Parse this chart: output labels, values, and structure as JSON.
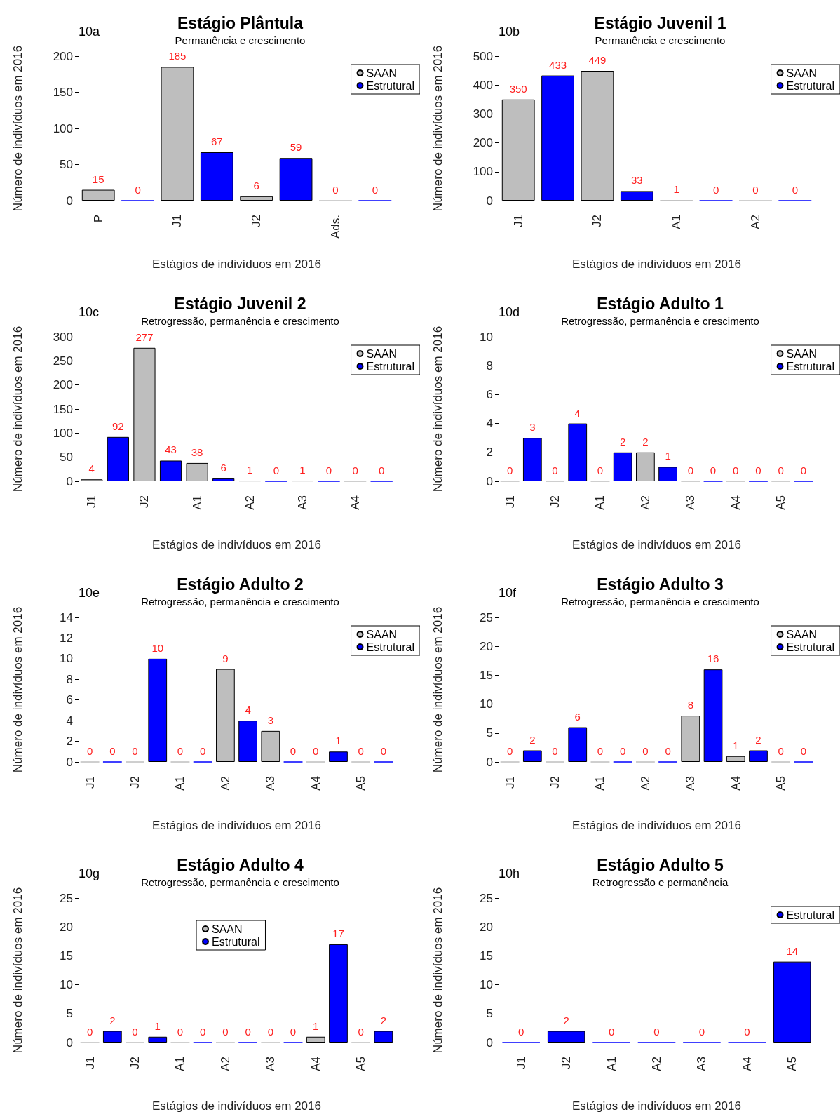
{
  "chart_data": [
    {
      "type": "bar",
      "title": "Estágio Plântula",
      "subtitle": "Permanência e crescimento",
      "xlabel": "Estágios de indivíduos em 2016",
      "ylabel": "Número de indivíduos em 2016",
      "annotations": [
        "10a"
      ],
      "categories": [
        "P",
        null,
        "J1",
        null,
        "J2",
        null,
        "Ads.",
        null
      ],
      "stacked": true,
      "ylim": [
        0,
        200
      ],
      "yticks": [
        0,
        50,
        100,
        150,
        200
      ],
      "data_labels": true,
      "legend": "top right",
      "series": [
        {
          "name": "SAAN",
          "color": "#bebebe",
          "values": [
            15,
            null,
            185,
            null,
            6,
            null,
            0,
            null
          ]
        },
        {
          "name": "Estrutural",
          "color": "#0000ff",
          "values": [
            null,
            0,
            null,
            67,
            null,
            59,
            null,
            0
          ]
        }
      ]
    },
    {
      "type": "bar",
      "title": "Estágio Juvenil 1",
      "subtitle": "Permanência e crescimento",
      "xlabel": "Estágios de indivíduos em 2016",
      "ylabel": "Número de indivíduos em 2016",
      "annotations": [
        "10b"
      ],
      "categories": [
        "J1",
        null,
        "J2",
        null,
        "A1",
        null,
        "A2",
        null
      ],
      "stacked": true,
      "ylim": [
        0,
        500
      ],
      "yticks": [
        0,
        100,
        200,
        300,
        400,
        500
      ],
      "data_labels": true,
      "legend": "top right",
      "series": [
        {
          "name": "SAAN",
          "color": "#bebebe",
          "values": [
            350,
            null,
            449,
            null,
            1,
            null,
            0,
            null
          ]
        },
        {
          "name": "Estrutural",
          "color": "#0000ff",
          "values": [
            null,
            433,
            null,
            33,
            null,
            0,
            null,
            0
          ]
        }
      ]
    },
    {
      "type": "bar",
      "title": "Estágio Juvenil 2",
      "subtitle": "Retrogressão, permanência e crescimento",
      "xlabel": "Estágios de indivíduos em 2016",
      "ylabel": "Número de indivíduos em 2016",
      "annotations": [
        "10c"
      ],
      "categories": [
        "J1",
        null,
        "J2",
        null,
        "A1",
        null,
        "A2",
        null,
        "A3",
        null,
        "A4",
        null
      ],
      "stacked": true,
      "ylim": [
        0,
        300
      ],
      "yticks": [
        0,
        50,
        100,
        150,
        200,
        250,
        300
      ],
      "data_labels": true,
      "legend": "top right",
      "series": [
        {
          "name": "SAAN",
          "color": "#bebebe",
          "values": [
            4,
            null,
            277,
            null,
            38,
            null,
            1,
            null,
            1,
            null,
            0,
            null
          ]
        },
        {
          "name": "Estrutural",
          "color": "#0000ff",
          "values": [
            null,
            92,
            null,
            43,
            null,
            6,
            null,
            0,
            null,
            0,
            null,
            0
          ]
        }
      ]
    },
    {
      "type": "bar",
      "title": "Estágio Adulto 1",
      "subtitle": "Retrogressão, permanência e crescimento",
      "xlabel": "Estágios de indivíduos em 2016",
      "ylabel": "Número de indivíduos em 2016",
      "annotations": [
        "10d"
      ],
      "categories": [
        "J1",
        null,
        "J2",
        null,
        "A1",
        null,
        "A2",
        null,
        "A3",
        null,
        "A4",
        null,
        "A5",
        null
      ],
      "stacked": true,
      "ylim": [
        0,
        10
      ],
      "yticks": [
        0,
        2,
        4,
        6,
        8,
        10
      ],
      "data_labels": true,
      "legend": "top right",
      "series": [
        {
          "name": "SAAN",
          "color": "#bebebe",
          "values": [
            0,
            null,
            0,
            null,
            0,
            null,
            2,
            null,
            0,
            null,
            0,
            null,
            0,
            null
          ]
        },
        {
          "name": "Estrutural",
          "color": "#0000ff",
          "values": [
            null,
            3,
            null,
            4,
            null,
            2,
            null,
            1,
            null,
            0,
            null,
            0,
            null,
            0
          ]
        }
      ]
    },
    {
      "type": "bar",
      "title": "Estágio Adulto 2",
      "subtitle": "Retrogressão, permanência e crescimento",
      "xlabel": "Estágios de indivíduos em 2016",
      "ylabel": "Número de indivíduos em 2016",
      "annotations": [
        "10e"
      ],
      "categories": [
        "J1",
        null,
        "J2",
        null,
        "A1",
        null,
        "A2",
        null,
        "A3",
        null,
        "A4",
        null,
        "A5",
        null
      ],
      "stacked": true,
      "ylim": [
        0,
        14
      ],
      "yticks": [
        0,
        2,
        4,
        6,
        8,
        10,
        12,
        14
      ],
      "data_labels": true,
      "legend": "top right",
      "series": [
        {
          "name": "SAAN",
          "color": "#bebebe",
          "values": [
            0,
            null,
            0,
            null,
            0,
            null,
            9,
            null,
            3,
            null,
            0,
            null,
            0,
            null
          ]
        },
        {
          "name": "Estrutural",
          "color": "#0000ff",
          "values": [
            null,
            0,
            null,
            10,
            null,
            0,
            null,
            4,
            null,
            0,
            null,
            1,
            null,
            0
          ]
        }
      ]
    },
    {
      "type": "bar",
      "title": "Estágio Adulto 3",
      "subtitle": "Retrogressão, permanência e crescimento",
      "xlabel": "Estágios de indivíduos em 2016",
      "ylabel": "Número de indivíduos em 2016",
      "annotations": [
        "10f"
      ],
      "categories": [
        "J1",
        null,
        "J2",
        null,
        "A1",
        null,
        "A2",
        null,
        "A3",
        null,
        "A4",
        null,
        "A5",
        null
      ],
      "stacked": true,
      "ylim": [
        0,
        25
      ],
      "yticks": [
        0,
        5,
        10,
        15,
        20,
        25
      ],
      "data_labels": true,
      "legend": "top right",
      "series": [
        {
          "name": "SAAN",
          "color": "#bebebe",
          "values": [
            0,
            null,
            0,
            null,
            0,
            null,
            0,
            null,
            8,
            null,
            1,
            null,
            0,
            null
          ]
        },
        {
          "name": "Estrutural",
          "color": "#0000ff",
          "values": [
            null,
            2,
            null,
            6,
            null,
            0,
            null,
            0,
            null,
            16,
            null,
            2,
            null,
            0
          ]
        }
      ]
    },
    {
      "type": "bar",
      "title": "Estágio Adulto 4",
      "subtitle": "Retrogressão, permanência e crescimento",
      "xlabel": "Estágios de indivíduos em 2016",
      "ylabel": "Número de indivíduos em 2016",
      "annotations": [
        "10g"
      ],
      "categories": [
        "J1",
        null,
        "J2",
        null,
        "A1",
        null,
        "A2",
        null,
        "A3",
        null,
        "A4",
        null,
        "A5",
        null
      ],
      "stacked": true,
      "ylim": [
        0,
        25
      ],
      "yticks": [
        0,
        5,
        10,
        15,
        20,
        25
      ],
      "data_labels": true,
      "legend": "top",
      "series": [
        {
          "name": "SAAN",
          "color": "#bebebe",
          "values": [
            0,
            null,
            0,
            null,
            0,
            null,
            0,
            null,
            0,
            null,
            1,
            null,
            0,
            null
          ]
        },
        {
          "name": "Estrutural",
          "color": "#0000ff",
          "values": [
            null,
            2,
            null,
            1,
            null,
            0,
            null,
            0,
            null,
            0,
            null,
            17,
            null,
            2
          ]
        }
      ]
    },
    {
      "type": "bar",
      "title": "Estágio Adulto 5",
      "subtitle": "Retrogressão e permanência",
      "xlabel": "Estágios de indivíduos em 2016",
      "ylabel": "Número de indivíduos em 2016",
      "annotations": [
        "10h"
      ],
      "categories": [
        "J1",
        "J2",
        "A1",
        "A2",
        "A3",
        "A4",
        "A5"
      ],
      "stacked": true,
      "ylim": [
        0,
        25
      ],
      "yticks": [
        0,
        5,
        10,
        15,
        20,
        25
      ],
      "data_labels": true,
      "legend": "top right",
      "series": [
        {
          "name": "Estrutural",
          "color": "#0000ff",
          "values": [
            0,
            2,
            0,
            0,
            0,
            0,
            14
          ]
        }
      ]
    }
  ]
}
